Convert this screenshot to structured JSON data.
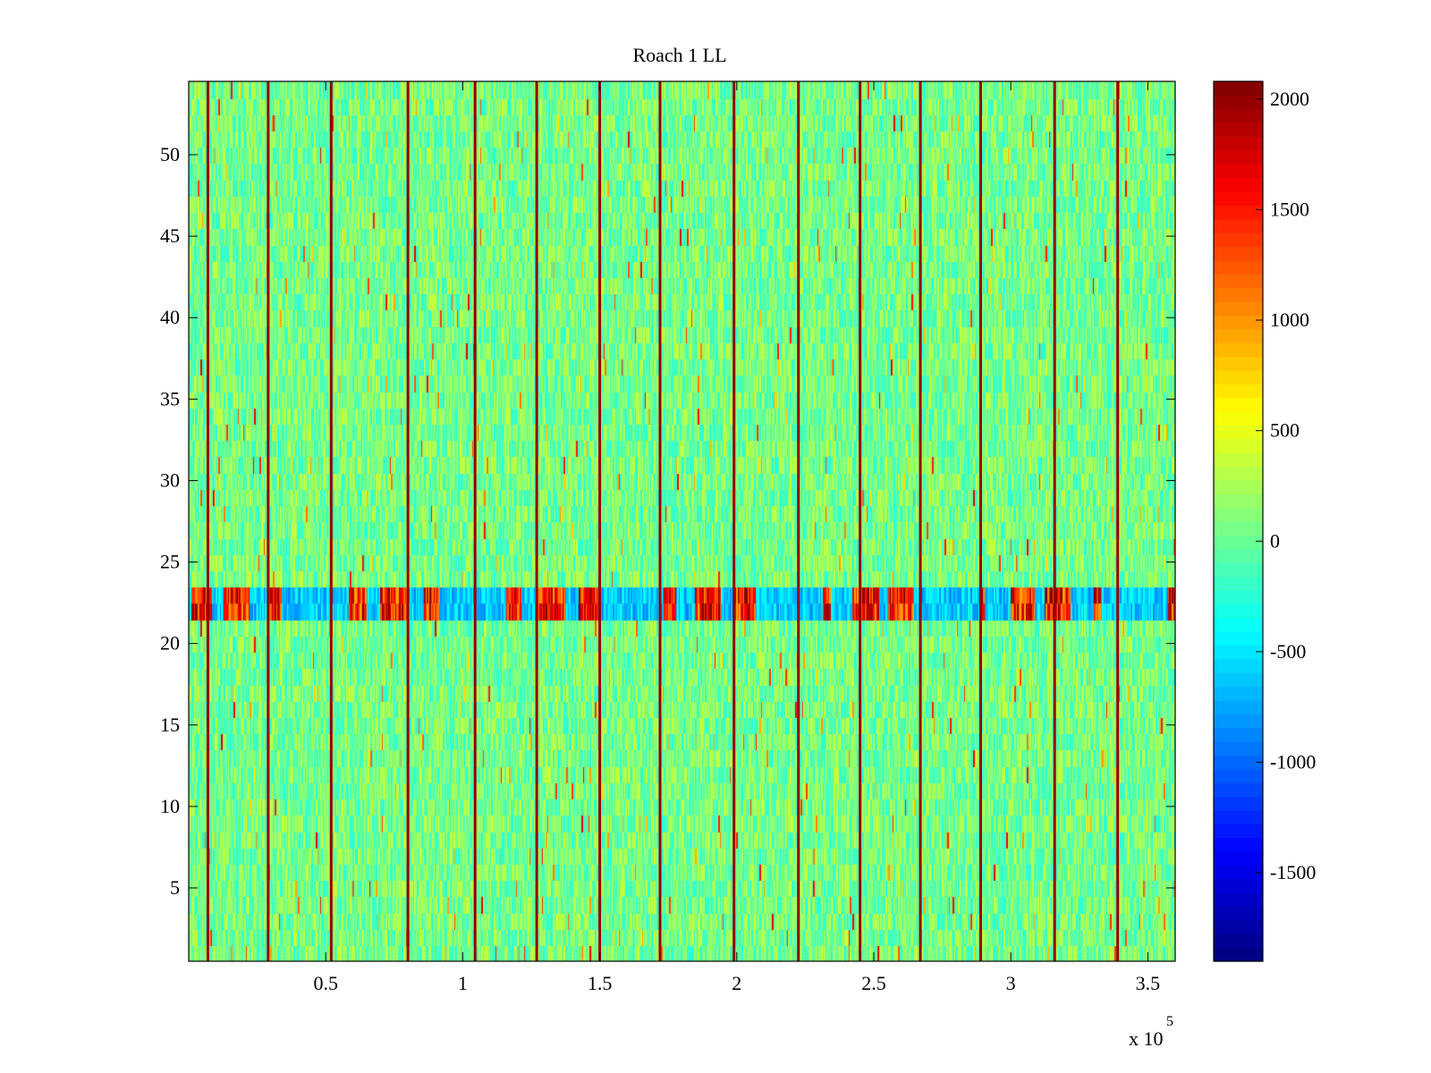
{
  "chart_data": {
    "type": "heatmap",
    "title": "Roach 1 LL",
    "xlabel": "",
    "ylabel": "",
    "x_range": [
      0,
      360000
    ],
    "y_range": [
      0.5,
      54.5
    ],
    "x_ticks": [
      50000,
      100000,
      150000,
      200000,
      250000,
      300000,
      350000
    ],
    "x_tick_labels": [
      "0.5",
      "1",
      "1.5",
      "2",
      "2.5",
      "3",
      "3.5"
    ],
    "x_exponent_base": "x 10",
    "x_exponent_power": "5",
    "y_ticks": [
      5,
      10,
      15,
      20,
      25,
      30,
      35,
      40,
      45,
      50
    ],
    "y_tick_labels": [
      "5",
      "10",
      "15",
      "20",
      "25",
      "30",
      "35",
      "40",
      "45",
      "50"
    ],
    "colorbar": {
      "colormap": "jet",
      "range": [
        -1900,
        2080
      ],
      "ticks": [
        -1500,
        -1000,
        -500,
        0,
        500,
        1000,
        1500,
        2000
      ],
      "tick_labels": [
        "-1500",
        "-1000",
        "-500",
        "0",
        "500",
        "1000",
        "1500",
        "2000"
      ]
    },
    "background_value_range": [
      -400,
      400
    ],
    "bright_vertical_lines_x": [
      7000,
      29000,
      52000,
      80000,
      104500,
      127000,
      150000,
      172000,
      199000,
      222500,
      245000,
      267000,
      289000,
      316000,
      339000
    ],
    "anomalous_rows": {
      "y_from": 21.5,
      "y_to": 23.5,
      "description_values": "alternating high (>1500) and low (<-800) clusters"
    }
  }
}
